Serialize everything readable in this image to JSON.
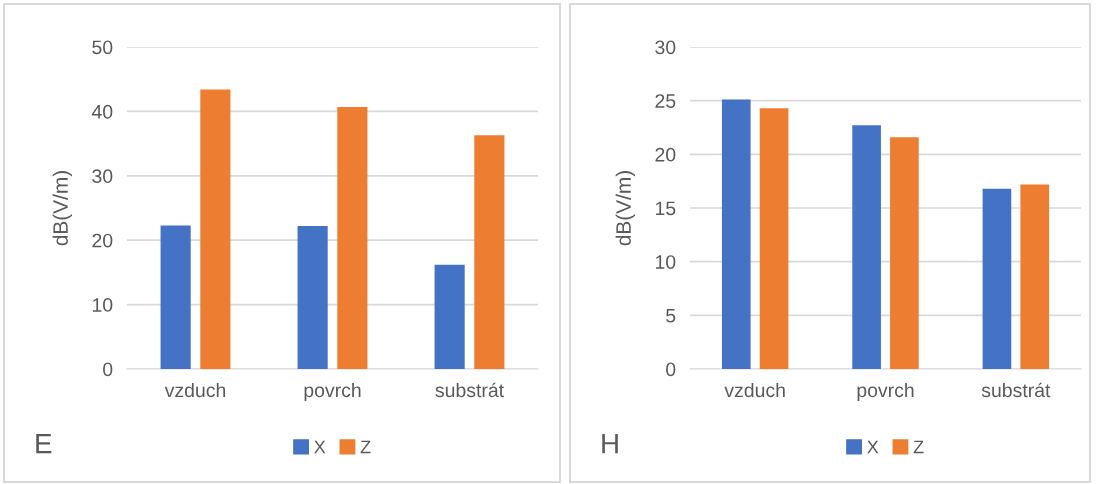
{
  "chart_data": [
    {
      "type": "bar",
      "categories": [
        "vzduch",
        "povrch",
        "substrát"
      ],
      "ylabel": "dB(V/m)",
      "ylim": [
        0,
        50
      ],
      "yticks": [
        0,
        10,
        20,
        30,
        40,
        50
      ],
      "grid": "y",
      "legend": "bottom",
      "annotations": [
        "E"
      ],
      "series": [
        {
          "name": "X",
          "color": "#4472c4",
          "values": [
            22.3,
            22.2,
            16.2
          ]
        },
        {
          "name": "Z",
          "color": "#ed7d31",
          "values": [
            43.4,
            40.7,
            36.3
          ]
        }
      ]
    },
    {
      "type": "bar",
      "categories": [
        "vzduch",
        "povrch",
        "substrát"
      ],
      "ylabel": "dB(V/m)",
      "ylim": [
        0,
        30
      ],
      "yticks": [
        0,
        5,
        10,
        15,
        20,
        25,
        30
      ],
      "grid": "y",
      "legend": "bottom",
      "annotations": [
        "H"
      ],
      "series": [
        {
          "name": "X",
          "color": "#4472c4",
          "values": [
            25.1,
            22.7,
            16.8
          ]
        },
        {
          "name": "Z",
          "color": "#ed7d31",
          "values": [
            24.3,
            21.6,
            17.2
          ]
        }
      ]
    }
  ]
}
